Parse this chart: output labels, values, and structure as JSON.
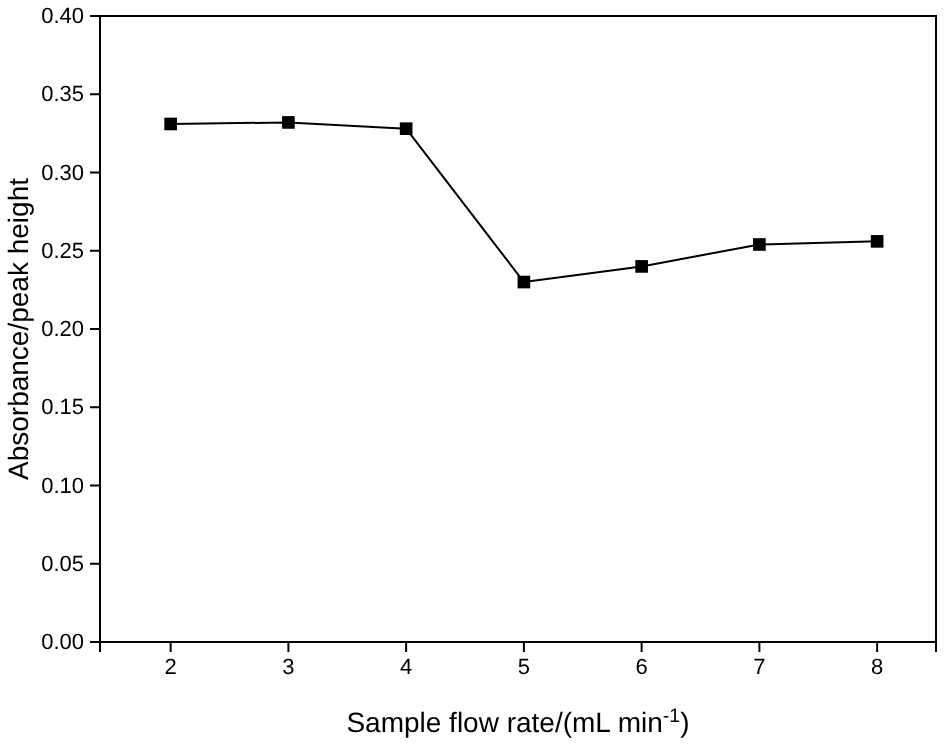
{
  "chart_data": {
    "type": "line",
    "xlabel": "Sample flow rate/(mL min$^{-1}$)",
    "ylabel": "Absorbance/peak height",
    "x": [
      2,
      3,
      4,
      5,
      6,
      7,
      8
    ],
    "series": [
      {
        "color": "#000000",
        "values": [
          0.331,
          0.332,
          0.328,
          0.23,
          0.24,
          0.254,
          0.256
        ]
      }
    ],
    "xlim": [
      1.4,
      8.5
    ],
    "xticks": [
      2,
      3,
      4,
      5,
      6,
      7,
      8
    ],
    "ylim": [
      0,
      0.4
    ],
    "yticks": [
      {
        "value": 0,
        "label": "0.00"
      },
      {
        "value": 0.05,
        "label": "0.05"
      },
      {
        "value": 0.1,
        "label": "0.10"
      },
      {
        "value": 0.15,
        "label": "0.15"
      },
      {
        "value": 0.2,
        "label": "0.20"
      },
      {
        "value": 0.25,
        "label": "0.25"
      },
      {
        "value": 0.3,
        "label": "0.30"
      },
      {
        "value": 0.35,
        "label": "0.35"
      },
      {
        "value": 0.4,
        "label": "0.40"
      }
    ],
    "grid": false,
    "marker": "square",
    "line_style": "solid"
  }
}
